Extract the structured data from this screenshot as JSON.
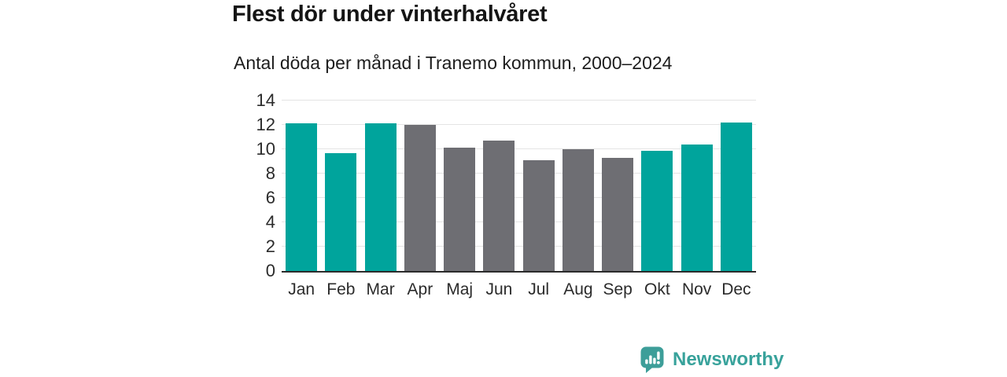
{
  "header": {
    "title": "Flest dör under vinterhalvåret",
    "subtitle": "Antal döda per månad i Tranemo kommun, 2000–2024"
  },
  "chart_data": {
    "type": "bar",
    "title": "Flest dör under vinterhalvåret",
    "subtitle": "Antal döda per månad i Tranemo kommun, 2000–2024",
    "categories": [
      "Jan",
      "Feb",
      "Mar",
      "Apr",
      "Maj",
      "Jun",
      "Jul",
      "Aug",
      "Sep",
      "Okt",
      "Nov",
      "Dec"
    ],
    "values": [
      12.1,
      9.7,
      12.1,
      12.0,
      10.1,
      10.7,
      9.1,
      10.0,
      9.3,
      9.9,
      10.4,
      12.2
    ],
    "highlight_winter_months": [
      true,
      true,
      true,
      false,
      false,
      false,
      false,
      false,
      false,
      true,
      true,
      true
    ],
    "xlabel": "",
    "ylabel": "",
    "ylim": [
      0,
      14
    ],
    "yticks": [
      0,
      2,
      4,
      6,
      8,
      10,
      12,
      14
    ],
    "grid": true,
    "legend": false,
    "colors": {
      "winter_bar": "#00a49c",
      "summer_bar": "#6e6e73",
      "gridline": "#e4e4e4",
      "axis": "#2b2b2b"
    }
  },
  "footer": {
    "brand": "Newsworthy",
    "brand_color": "#38a29b",
    "logo_icon": "bar-chart-speech-bubble-icon"
  }
}
